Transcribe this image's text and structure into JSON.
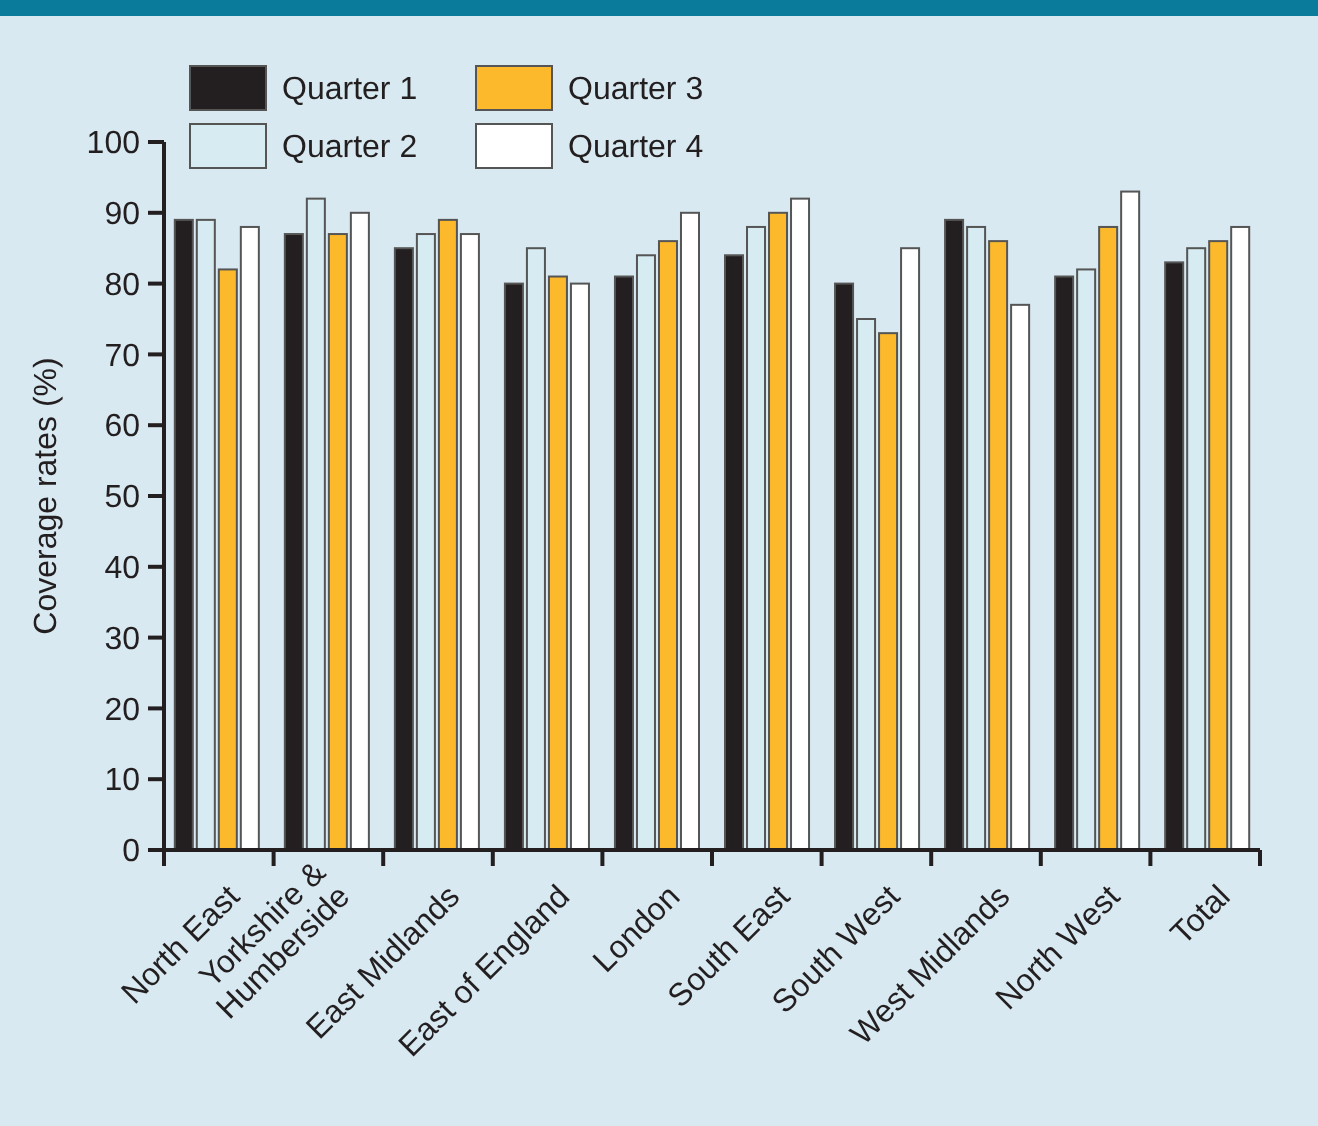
{
  "chart_data": {
    "type": "bar",
    "ylabel": "Coverage rates (%)",
    "categories": [
      "North East",
      "Yorkshire &\nHumberside",
      "East Midlands",
      "East of England",
      "London",
      "South East",
      "South West",
      "West Midlands",
      "North West",
      "Total"
    ],
    "series": [
      {
        "name": "Quarter 1",
        "color": "#231f20",
        "values": [
          89,
          87,
          85,
          80,
          81,
          84,
          80,
          89,
          81,
          83
        ]
      },
      {
        "name": "Quarter 2",
        "color": "#d6ebf2",
        "values": [
          89,
          92,
          87,
          85,
          84,
          88,
          75,
          88,
          82,
          85
        ]
      },
      {
        "name": "Quarter 3",
        "color": "#fbb92b",
        "values": [
          82,
          87,
          89,
          81,
          86,
          90,
          73,
          86,
          88,
          86
        ]
      },
      {
        "name": "Quarter 4",
        "color": "#ffffff",
        "values": [
          88,
          90,
          87,
          80,
          90,
          92,
          85,
          77,
          93,
          88
        ]
      }
    ],
    "ylim": [
      0,
      100
    ],
    "yticks": [
      0,
      10,
      20,
      30,
      40,
      50,
      60,
      70,
      80,
      90,
      100
    ],
    "legend": "top left",
    "grid": false
  }
}
